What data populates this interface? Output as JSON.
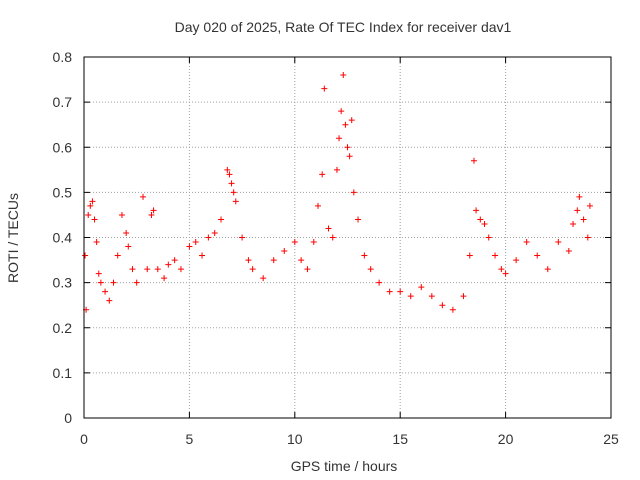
{
  "chart_data": {
    "type": "scatter",
    "title": "Day 020 of 2025, Rate Of TEC Index for receiver dav1",
    "xlabel": "GPS time / hours",
    "ylabel": "ROTI / TECUs",
    "xlim": [
      0,
      25
    ],
    "ylim": [
      0,
      0.8
    ],
    "x_ticks": [
      0,
      5,
      10,
      15,
      20,
      25
    ],
    "y_ticks": [
      0,
      0.1,
      0.2,
      0.3,
      0.4,
      0.5,
      0.6,
      0.7,
      0.8
    ],
    "x_tick_labels": [
      "0",
      "5",
      "10",
      "15",
      "20",
      "25"
    ],
    "y_tick_labels": [
      "0",
      "0.1",
      "0.2",
      "0.3",
      "0.4",
      "0.5",
      "0.6",
      "0.7",
      "0.8"
    ],
    "grid": true,
    "marker": "+",
    "series": [
      {
        "name": "ROTI",
        "color": "#ff0000",
        "points": [
          [
            0.05,
            0.36
          ],
          [
            0.1,
            0.24
          ],
          [
            0.2,
            0.45
          ],
          [
            0.3,
            0.47
          ],
          [
            0.4,
            0.48
          ],
          [
            0.5,
            0.44
          ],
          [
            0.6,
            0.39
          ],
          [
            0.7,
            0.32
          ],
          [
            0.8,
            0.3
          ],
          [
            1.0,
            0.28
          ],
          [
            1.2,
            0.26
          ],
          [
            1.4,
            0.3
          ],
          [
            1.6,
            0.36
          ],
          [
            1.8,
            0.45
          ],
          [
            2.0,
            0.41
          ],
          [
            2.1,
            0.38
          ],
          [
            2.3,
            0.33
          ],
          [
            2.5,
            0.3
          ],
          [
            2.8,
            0.49
          ],
          [
            3.0,
            0.33
          ],
          [
            3.2,
            0.45
          ],
          [
            3.3,
            0.46
          ],
          [
            3.5,
            0.33
          ],
          [
            3.8,
            0.31
          ],
          [
            4.0,
            0.34
          ],
          [
            4.3,
            0.35
          ],
          [
            4.6,
            0.33
          ],
          [
            5.0,
            0.38
          ],
          [
            5.3,
            0.39
          ],
          [
            5.6,
            0.36
          ],
          [
            5.9,
            0.4
          ],
          [
            6.2,
            0.41
          ],
          [
            6.5,
            0.44
          ],
          [
            6.8,
            0.55
          ],
          [
            6.9,
            0.54
          ],
          [
            7.0,
            0.52
          ],
          [
            7.1,
            0.5
          ],
          [
            7.2,
            0.48
          ],
          [
            7.5,
            0.4
          ],
          [
            7.8,
            0.35
          ],
          [
            8.0,
            0.33
          ],
          [
            8.5,
            0.31
          ],
          [
            9.0,
            0.35
          ],
          [
            9.5,
            0.37
          ],
          [
            10.0,
            0.39
          ],
          [
            10.3,
            0.35
          ],
          [
            10.6,
            0.33
          ],
          [
            10.9,
            0.39
          ],
          [
            11.1,
            0.47
          ],
          [
            11.3,
            0.54
          ],
          [
            11.4,
            0.73
          ],
          [
            11.6,
            0.42
          ],
          [
            11.8,
            0.4
          ],
          [
            12.0,
            0.55
          ],
          [
            12.1,
            0.62
          ],
          [
            12.2,
            0.68
          ],
          [
            12.3,
            0.76
          ],
          [
            12.4,
            0.65
          ],
          [
            12.5,
            0.6
          ],
          [
            12.6,
            0.58
          ],
          [
            12.7,
            0.66
          ],
          [
            12.8,
            0.5
          ],
          [
            13.0,
            0.44
          ],
          [
            13.3,
            0.36
          ],
          [
            13.6,
            0.33
          ],
          [
            14.0,
            0.3
          ],
          [
            14.5,
            0.28
          ],
          [
            15.0,
            0.28
          ],
          [
            15.5,
            0.27
          ],
          [
            16.0,
            0.29
          ],
          [
            16.5,
            0.27
          ],
          [
            17.0,
            0.25
          ],
          [
            17.5,
            0.24
          ],
          [
            18.0,
            0.27
          ],
          [
            18.3,
            0.36
          ],
          [
            18.5,
            0.57
          ],
          [
            18.6,
            0.46
          ],
          [
            18.8,
            0.44
          ],
          [
            19.0,
            0.43
          ],
          [
            19.2,
            0.4
          ],
          [
            19.5,
            0.36
          ],
          [
            19.8,
            0.33
          ],
          [
            20.0,
            0.32
          ],
          [
            20.5,
            0.35
          ],
          [
            21.0,
            0.39
          ],
          [
            21.5,
            0.36
          ],
          [
            22.0,
            0.33
          ],
          [
            22.5,
            0.39
          ],
          [
            23.0,
            0.37
          ],
          [
            23.2,
            0.43
          ],
          [
            23.4,
            0.46
          ],
          [
            23.5,
            0.49
          ],
          [
            23.7,
            0.44
          ],
          [
            23.9,
            0.4
          ],
          [
            24.0,
            0.47
          ]
        ]
      }
    ]
  }
}
